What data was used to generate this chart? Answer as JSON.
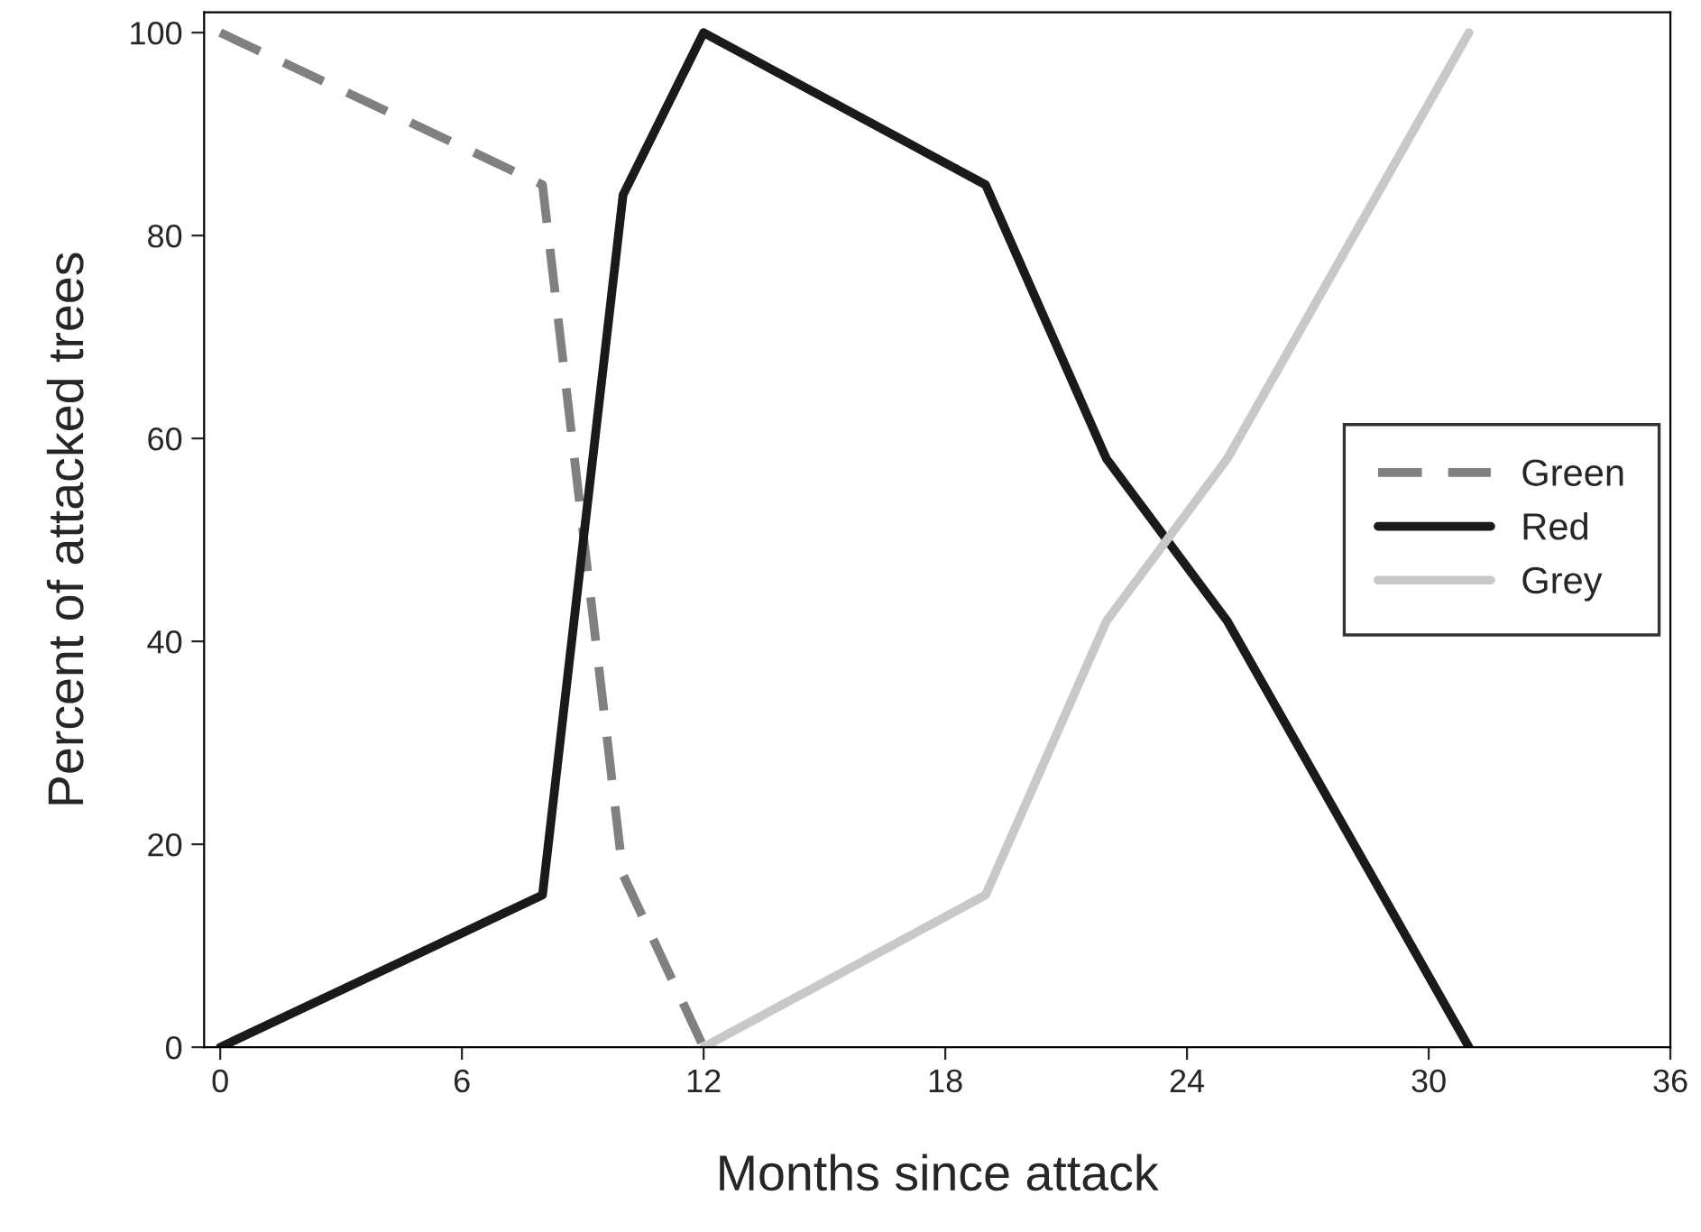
{
  "chart_data": {
    "type": "line",
    "xlabel": "Months since attack",
    "ylabel": "Percent of attacked trees",
    "xlim": [
      -0.4,
      36
    ],
    "xticks": [
      0,
      6,
      12,
      18,
      24,
      30,
      36
    ],
    "ylim": [
      0,
      102
    ],
    "yticks": [
      0,
      20,
      40,
      60,
      80,
      100
    ],
    "grid": false,
    "legend": "right",
    "marker": "none",
    "series": [
      {
        "name": "Green",
        "color": "#808080",
        "line_style": "dashed",
        "x": [
          0,
          8,
          10,
          12
        ],
        "values": [
          100,
          85,
          17,
          0
        ]
      },
      {
        "name": "Red",
        "color": "#1a1a1a",
        "line_style": "solid",
        "x": [
          0,
          8,
          10,
          12,
          19,
          22,
          25,
          31
        ],
        "values": [
          0,
          15,
          84,
          100,
          85,
          58,
          42,
          0
        ]
      },
      {
        "name": "Grey",
        "color": "#c8c8c8",
        "line_style": "solid",
        "x": [
          12,
          19,
          22,
          25,
          31
        ],
        "values": [
          0,
          15,
          42,
          58,
          100
        ]
      }
    ]
  }
}
